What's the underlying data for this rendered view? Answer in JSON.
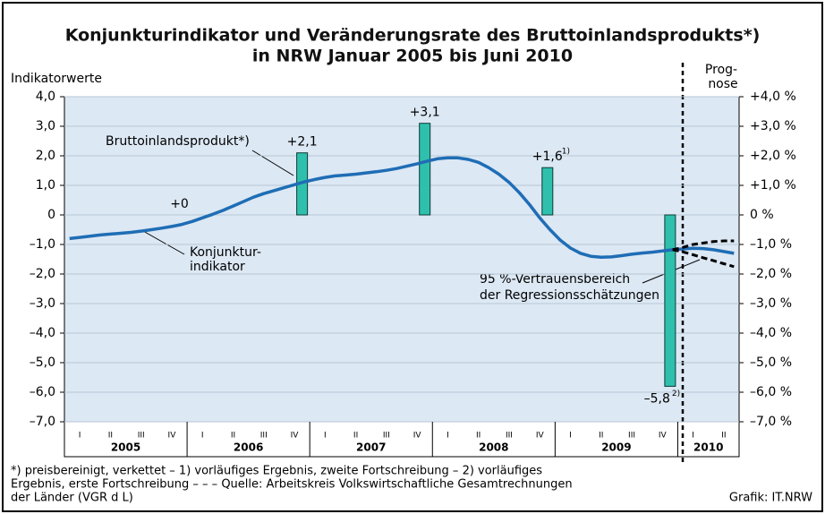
{
  "chart_data": {
    "type": "bar-line",
    "title": [
      "Konjunkturindikator und Veränderungsrate des Bruttoinlandsprodukts*)",
      "in NRW Januar 2005 bis Juni 2010"
    ],
    "y_axis_label": "Indikatorwerte",
    "forecast_label": [
      "Prog-",
      "nose"
    ],
    "categories": [
      "I",
      "II",
      "III",
      "IV",
      "I",
      "II",
      "III",
      "IV",
      "I",
      "II",
      "III",
      "IV",
      "I",
      "II",
      "III",
      "IV",
      "I",
      "II",
      "III",
      "IV",
      "I",
      "II"
    ],
    "years": [
      "2005",
      "2006",
      "2007",
      "2008",
      "2009",
      "2010"
    ],
    "ylim": [
      -7,
      4
    ],
    "yticks": [
      {
        "value": -7,
        "label": "–7,0"
      },
      {
        "value": -6,
        "label": "–6,0"
      },
      {
        "value": -5,
        "label": "–5,0"
      },
      {
        "value": -4,
        "label": "–4,0"
      },
      {
        "value": -3,
        "label": "–3,0"
      },
      {
        "value": -2,
        "label": "–2,0"
      },
      {
        "value": -1,
        "label": "–1,0"
      },
      0,
      {
        "value": 1,
        "label": "1,0"
      },
      {
        "value": 2,
        "label": "2,0"
      },
      {
        "value": 3,
        "label": "3,0"
      },
      {
        "value": 4,
        "label": "4,0"
      }
    ],
    "y2lim": [
      -7,
      4
    ],
    "y2ticks": [
      {
        "value": -7,
        "label": "–7,0 %"
      },
      {
        "value": -6,
        "label": "–6,0 %"
      },
      {
        "value": -5,
        "label": "–5,0 %"
      },
      {
        "value": -4,
        "label": "–4,0 %"
      },
      {
        "value": -3,
        "label": "–3,0 %"
      },
      {
        "value": -2,
        "label": "–2,0 %"
      },
      {
        "value": -1,
        "label": "–1,0 %"
      },
      {
        "value": 0,
        "label": "0 %"
      },
      {
        "value": 1,
        "label": "+1,0 %"
      },
      {
        "value": 2,
        "label": "+2,0 %"
      },
      {
        "value": 3,
        "label": "+3,0 %"
      },
      {
        "value": 4,
        "label": "+4,0 %"
      }
    ],
    "grid": true,
    "bars": {
      "name": "Bruttoinlandsprodukt*)",
      "color": "#2fc0ad",
      "axis": "y2",
      "values": [
        null,
        null,
        null,
        0,
        null,
        null,
        null,
        2.1,
        null,
        null,
        null,
        3.1,
        null,
        null,
        null,
        1.6,
        null,
        null,
        null,
        -5.8,
        null,
        null
      ],
      "value_labels": [
        null,
        null,
        null,
        "+0",
        null,
        null,
        null,
        "+2,1",
        null,
        null,
        null,
        "+3,1",
        null,
        null,
        null,
        "+1,6",
        null,
        null,
        null,
        "–5,8",
        null,
        null
      ],
      "footnote_marks": [
        null,
        null,
        null,
        null,
        null,
        null,
        null,
        null,
        null,
        null,
        null,
        null,
        null,
        null,
        null,
        "1)",
        null,
        null,
        null,
        "2)",
        null,
        null
      ]
    },
    "lines": [
      {
        "name": [
          "Konjunktur-",
          "indikator"
        ],
        "color": "#1f6db5",
        "dashed": false,
        "values": [
          -0.8,
          -0.76,
          -0.72,
          -0.68,
          -0.65,
          -0.62,
          -0.59,
          -0.55,
          -0.5,
          -0.45,
          -0.39,
          -0.32,
          -0.22,
          -0.1,
          0.02,
          0.15,
          0.3,
          0.45,
          0.6,
          0.72,
          0.82,
          0.92,
          1.02,
          1.12,
          1.2,
          1.27,
          1.32,
          1.35,
          1.38,
          1.42,
          1.46,
          1.51,
          1.57,
          1.65,
          1.73,
          1.82,
          1.9,
          1.93,
          1.93,
          1.88,
          1.78,
          1.6,
          1.38,
          1.1,
          0.75,
          0.35,
          -0.1,
          -0.5,
          -0.85,
          -1.12,
          -1.3,
          -1.4,
          -1.43,
          -1.42,
          -1.38,
          -1.33,
          -1.29,
          -1.26,
          -1.22,
          -1.18,
          -1.15,
          -1.13,
          -1.14,
          -1.18,
          -1.24,
          -1.3
        ]
      },
      {
        "name": [
          "95 %-Vertrauensbereich",
          "der Regressionsschätzungen"
        ],
        "color": "#000000",
        "dashed": true,
        "values": [
          null,
          null,
          null,
          null,
          null,
          null,
          null,
          null,
          null,
          null,
          null,
          null,
          null,
          null,
          null,
          null,
          null,
          null,
          null,
          null,
          null,
          null,
          null,
          null,
          null,
          null,
          null,
          null,
          null,
          null,
          null,
          null,
          null,
          null,
          null,
          null,
          null,
          null,
          null,
          null,
          null,
          null,
          null,
          null,
          null,
          null,
          null,
          null,
          null,
          null,
          null,
          null,
          null,
          null,
          null,
          null,
          null,
          null,
          null,
          -1.18,
          -1.1,
          -1.0,
          -0.95,
          -0.9,
          -0.88,
          -0.88
        ]
      },
      {
        "color": "#000000",
        "dashed": true,
        "values": [
          null,
          null,
          null,
          null,
          null,
          null,
          null,
          null,
          null,
          null,
          null,
          null,
          null,
          null,
          null,
          null,
          null,
          null,
          null,
          null,
          null,
          null,
          null,
          null,
          null,
          null,
          null,
          null,
          null,
          null,
          null,
          null,
          null,
          null,
          null,
          null,
          null,
          null,
          null,
          null,
          null,
          null,
          null,
          null,
          null,
          null,
          null,
          null,
          null,
          null,
          null,
          null,
          null,
          null,
          null,
          null,
          null,
          null,
          null,
          -1.18,
          -1.25,
          -1.35,
          -1.45,
          -1.55,
          -1.65,
          -1.75
        ]
      }
    ],
    "footnote": [
      "*) preisbereinigt, verkettet – 1) vorläufiges Ergebnis, zweite Fortschreibung – 2) vorläufiges",
      "Ergebnis, erste Fortschreibung – – – Quelle: Arbeitskreis Volkswirtschaftliche Gesamtrechnungen",
      "der Länder (VGR d L)"
    ],
    "source": "Grafik: IT.NRW"
  }
}
